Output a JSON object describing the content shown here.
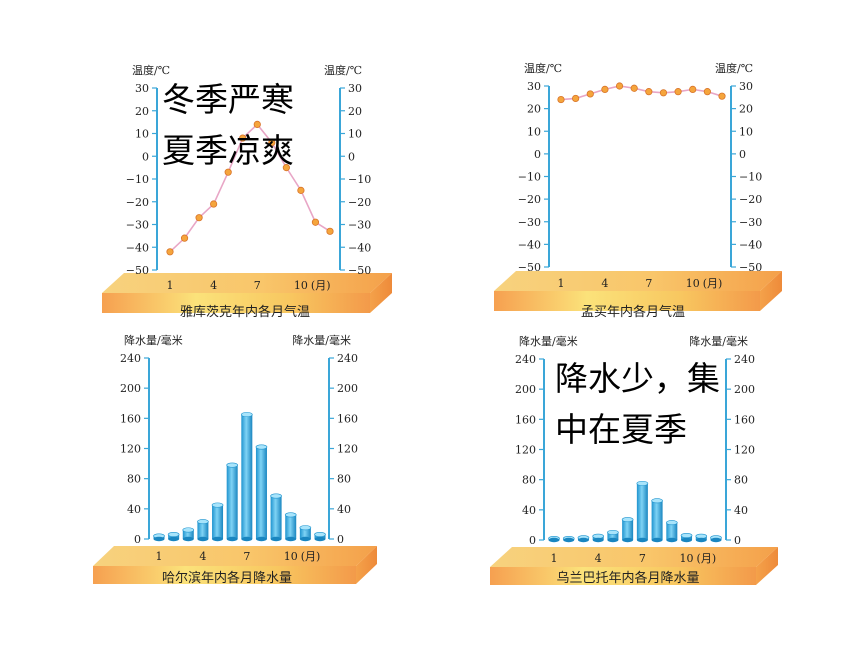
{
  "chart_data": [
    {
      "type": "line",
      "title": "雅库茨克年内各月气温",
      "ylabel_left": "温度/℃",
      "ylabel_right": "温度/℃",
      "x_unit": "(月)",
      "x": [
        1,
        2,
        3,
        4,
        5,
        6,
        7,
        8,
        9,
        10,
        11,
        12
      ],
      "x_tick_labels": [
        "1",
        "4",
        "7",
        "10"
      ],
      "values": [
        -42,
        -36,
        -27,
        -21,
        -7,
        8,
        14,
        6,
        -5,
        -15,
        -29,
        -33
      ],
      "y_ticks": [
        30,
        20,
        10,
        0,
        -10,
        -20,
        -30,
        -40,
        -50
      ],
      "y_tick_labels": [
        "30",
        "20",
        "10",
        "0",
        "−10",
        "−20",
        "−30",
        "−40",
        "−50"
      ],
      "ylim": [
        -50,
        30
      ],
      "annotation": [
        "冬季严寒",
        "夏季凉爽"
      ],
      "colors": {
        "line": "#e8a6c6",
        "marker": "#f5a53c",
        "axis": "#3aa6d8"
      }
    },
    {
      "type": "line",
      "title": "孟买年内各月气温",
      "ylabel_left": "温度/℃",
      "ylabel_right": "温度/℃",
      "x_unit": "(月)",
      "x": [
        1,
        2,
        3,
        4,
        5,
        6,
        7,
        8,
        9,
        10,
        11,
        12
      ],
      "x_tick_labels": [
        "1",
        "4",
        "7",
        "10"
      ],
      "values": [
        24,
        24.5,
        26.5,
        28.5,
        30,
        29,
        27.5,
        27,
        27.5,
        28.5,
        27.5,
        25.5
      ],
      "y_ticks": [
        30,
        20,
        10,
        0,
        -10,
        -20,
        -30,
        -40,
        -50
      ],
      "y_tick_labels": [
        "30",
        "20",
        "10",
        "0",
        "−10",
        "−20",
        "−30",
        "−40",
        "−50"
      ],
      "ylim": [
        -50,
        30
      ],
      "colors": {
        "line": "#e8a6c6",
        "marker": "#f5a53c",
        "axis": "#3aa6d8"
      }
    },
    {
      "type": "bar",
      "title": "哈尔滨年内各月降水量",
      "ylabel_left": "降水量/毫米",
      "ylabel_right": "降水量/毫米",
      "x_unit": "(月)",
      "x": [
        1,
        2,
        3,
        4,
        5,
        6,
        7,
        8,
        9,
        10,
        11,
        12
      ],
      "x_tick_labels": [
        "1",
        "4",
        "7",
        "10"
      ],
      "values": [
        4,
        6,
        12,
        23,
        45,
        98,
        165,
        122,
        57,
        32,
        15,
        6
      ],
      "y_ticks": [
        240,
        200,
        160,
        120,
        80,
        40,
        0
      ],
      "y_tick_labels": [
        "240",
        "200",
        "160",
        "120",
        "80",
        "40",
        "0"
      ],
      "ylim": [
        0,
        240
      ],
      "colors": {
        "bar": "#3cb3e4",
        "axis": "#3aa6d8"
      }
    },
    {
      "type": "bar",
      "title": "乌兰巴托年内各月降水量",
      "ylabel_left": "降水量/毫米",
      "ylabel_right": "降水量/毫米",
      "x_unit": "(月)",
      "x": [
        1,
        2,
        3,
        4,
        5,
        6,
        7,
        8,
        9,
        10,
        11,
        12
      ],
      "x_tick_labels": [
        "1",
        "4",
        "7",
        "10"
      ],
      "values": [
        2,
        2,
        3,
        5,
        10,
        27,
        75,
        52,
        23,
        6,
        5,
        3
      ],
      "y_ticks": [
        240,
        200,
        160,
        120,
        80,
        40,
        0
      ],
      "y_tick_labels": [
        "240",
        "200",
        "160",
        "120",
        "80",
        "40",
        "0"
      ],
      "ylim": [
        0,
        240
      ],
      "annotation": [
        "降水少，集",
        "中在夏季"
      ],
      "colors": {
        "bar": "#3cb3e4",
        "axis": "#3aa6d8"
      }
    }
  ]
}
